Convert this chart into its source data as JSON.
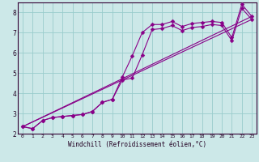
{
  "bg_color": "#cce8e8",
  "plot_bg": "#cce8e8",
  "line_color": "#880088",
  "grid_color": "#99cccc",
  "xlabel": "Windchill (Refroidissement éolien,°C)",
  "xlim": [
    -0.5,
    23.5
  ],
  "ylim": [
    2.0,
    8.5
  ],
  "yticks": [
    2,
    3,
    4,
    5,
    6,
    7,
    8
  ],
  "xticks": [
    0,
    1,
    2,
    3,
    4,
    5,
    6,
    7,
    8,
    9,
    10,
    11,
    12,
    13,
    14,
    15,
    16,
    17,
    18,
    19,
    20,
    21,
    22,
    23
  ],
  "line1_x": [
    0,
    1,
    2,
    3,
    4,
    5,
    6,
    7,
    8,
    9,
    10,
    11,
    12,
    13,
    14,
    15,
    16,
    17,
    18,
    19,
    20,
    21,
    22,
    23
  ],
  "line1_y": [
    2.35,
    2.25,
    2.65,
    2.8,
    2.85,
    2.9,
    2.95,
    3.1,
    3.55,
    3.7,
    4.8,
    5.85,
    7.0,
    7.4,
    7.4,
    7.55,
    7.3,
    7.45,
    7.5,
    7.55,
    7.5,
    6.75,
    8.4,
    7.8
  ],
  "line2_x": [
    0,
    1,
    2,
    3,
    4,
    5,
    6,
    7,
    8,
    9,
    10,
    11,
    12,
    13,
    14,
    15,
    16,
    17,
    18,
    19,
    20,
    21,
    22,
    23
  ],
  "line2_y": [
    2.35,
    2.25,
    2.65,
    2.8,
    2.85,
    2.9,
    2.95,
    3.1,
    3.55,
    3.7,
    4.65,
    4.75,
    5.9,
    7.15,
    7.2,
    7.35,
    7.1,
    7.25,
    7.3,
    7.4,
    7.35,
    6.6,
    8.2,
    7.65
  ],
  "line3_x": [
    0,
    23
  ],
  "line3_y": [
    2.35,
    7.8
  ],
  "line4_x": [
    0,
    23
  ],
  "line4_y": [
    2.35,
    7.65
  ]
}
